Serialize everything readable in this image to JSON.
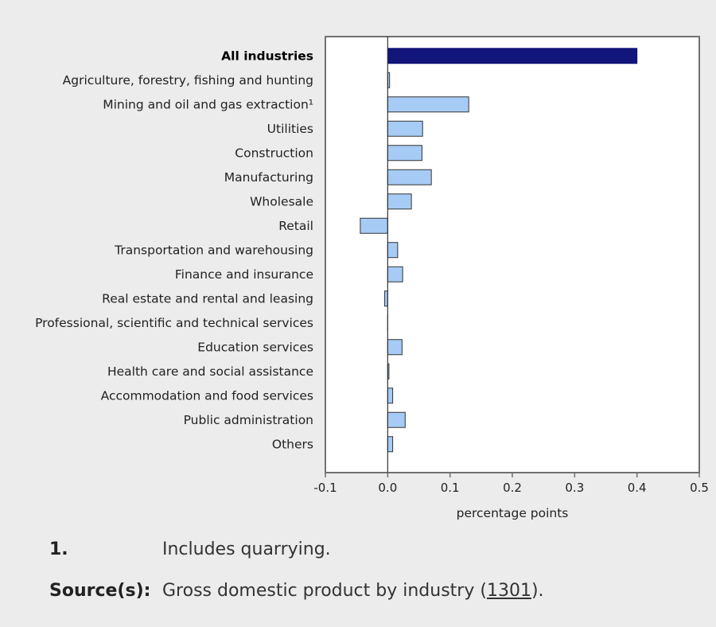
{
  "chart_data": {
    "type": "bar",
    "orientation": "horizontal",
    "categories": [
      "All industries",
      "Agriculture, forestry, fishing and hunting",
      "Mining and oil and gas extraction¹",
      "Utilities",
      "Construction",
      "Manufacturing",
      "Wholesale",
      "Retail",
      "Transportation and warehousing",
      "Finance and insurance",
      "Real estate and rental and leasing",
      "Professional, scientific and technical services",
      "Education services",
      "Health care and social assistance",
      "Accommodation and food services",
      "Public administration",
      "Others"
    ],
    "values": [
      0.4,
      0.003,
      0.13,
      0.056,
      0.055,
      0.07,
      0.038,
      -0.044,
      0.016,
      0.024,
      -0.005,
      0.0,
      0.023,
      0.002,
      0.008,
      0.028,
      0.008
    ],
    "highlight_index": 0,
    "xlabel": "percentage points",
    "ylabel": "",
    "xlim": [
      -0.1,
      0.5
    ],
    "xticks": [
      -0.1,
      0.0,
      0.1,
      0.2,
      0.3,
      0.4,
      0.5
    ],
    "tick_labels": [
      "-0.1",
      "0.0",
      "0.1",
      "0.2",
      "0.3",
      "0.4",
      "0.5"
    ],
    "grid": false,
    "colors": {
      "highlight": "#12157a",
      "bar": "#a6cbf5",
      "bar_border": "#333333",
      "frame": "#707070"
    }
  },
  "notes": {
    "footnote_label": "1.",
    "footnote_text": "Includes quarrying.",
    "source_label": "Source(s):",
    "source_text_before": "Gross domestic product by industry (",
    "source_link": "1301",
    "source_text_after": ")."
  }
}
